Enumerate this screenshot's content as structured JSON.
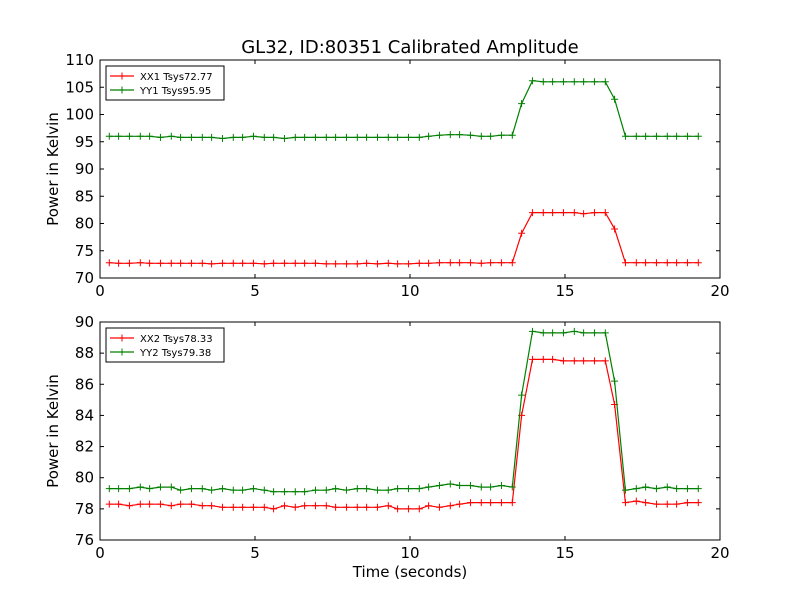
{
  "chart_data": [
    {
      "type": "line",
      "title": "GL32, ID:80351 Calibrated Amplitude",
      "xlabel": "",
      "ylabel": "Power in Kelvin",
      "xlim": [
        0,
        20
      ],
      "ylim": [
        70,
        110
      ],
      "xticks": [
        "0",
        "5",
        "10",
        "15",
        "20"
      ],
      "yticks": [
        "70",
        "75",
        "80",
        "85",
        "90",
        "95",
        "100",
        "105",
        "110"
      ],
      "grid": false,
      "legend": "top-left",
      "x": [
        0.3,
        0.6,
        0.95,
        1.3,
        1.6,
        1.95,
        2.3,
        2.6,
        2.95,
        3.3,
        3.6,
        3.95,
        4.3,
        4.6,
        4.95,
        5.3,
        5.6,
        5.95,
        6.3,
        6.6,
        6.95,
        7.3,
        7.6,
        7.95,
        8.3,
        8.6,
        8.95,
        9.3,
        9.6,
        9.95,
        10.3,
        10.6,
        10.95,
        11.3,
        11.6,
        11.95,
        12.3,
        12.6,
        12.95,
        13.3,
        13.6,
        13.95,
        14.3,
        14.6,
        14.95,
        15.3,
        15.6,
        15.95,
        16.3,
        16.6,
        16.95,
        17.3,
        17.6,
        17.95,
        18.3,
        18.6,
        18.95,
        19.3
      ],
      "series": [
        {
          "name": "XX1 Tsys72.77",
          "color": "#ff0000",
          "values": [
            72.8,
            72.7,
            72.7,
            72.8,
            72.7,
            72.7,
            72.7,
            72.7,
            72.7,
            72.7,
            72.6,
            72.7,
            72.7,
            72.7,
            72.7,
            72.6,
            72.7,
            72.7,
            72.7,
            72.7,
            72.7,
            72.6,
            72.6,
            72.6,
            72.6,
            72.7,
            72.6,
            72.7,
            72.6,
            72.6,
            72.7,
            72.7,
            72.8,
            72.8,
            72.8,
            72.8,
            72.7,
            72.8,
            72.8,
            72.8,
            78.2,
            82.0,
            82.0,
            82.0,
            82.0,
            82.0,
            81.8,
            82.0,
            82.0,
            79.0,
            72.8,
            72.8,
            72.8,
            72.8,
            72.8,
            72.8,
            72.8,
            72.8
          ]
        },
        {
          "name": "YY1 Tsys95.95",
          "color": "#008000",
          "values": [
            96.0,
            96.0,
            96.0,
            96.0,
            96.0,
            95.8,
            96.0,
            95.8,
            95.8,
            95.8,
            95.8,
            95.6,
            95.8,
            95.8,
            96.0,
            95.8,
            95.8,
            95.6,
            95.8,
            95.8,
            95.8,
            95.8,
            95.8,
            95.8,
            95.8,
            95.8,
            95.8,
            95.8,
            95.8,
            95.8,
            95.8,
            96.0,
            96.2,
            96.3,
            96.3,
            96.2,
            96.0,
            96.0,
            96.2,
            96.2,
            102.0,
            106.2,
            106.0,
            106.0,
            106.0,
            106.0,
            106.0,
            106.0,
            106.0,
            102.8,
            96.0,
            96.0,
            96.0,
            96.0,
            96.0,
            96.0,
            96.0,
            96.0
          ]
        }
      ]
    },
    {
      "type": "line",
      "title": "",
      "xlabel": "Time (seconds)",
      "ylabel": "Power in Kelvin",
      "xlim": [
        0,
        20
      ],
      "ylim": [
        76,
        90
      ],
      "xticks": [
        "0",
        "5",
        "10",
        "15",
        "20"
      ],
      "yticks": [
        "76",
        "78",
        "80",
        "82",
        "84",
        "86",
        "88",
        "90"
      ],
      "grid": false,
      "legend": "top-left",
      "x": [
        0.3,
        0.6,
        0.95,
        1.3,
        1.6,
        1.95,
        2.3,
        2.6,
        2.95,
        3.3,
        3.6,
        3.95,
        4.3,
        4.6,
        4.95,
        5.3,
        5.6,
        5.95,
        6.3,
        6.6,
        6.95,
        7.3,
        7.6,
        7.95,
        8.3,
        8.6,
        8.95,
        9.3,
        9.6,
        9.95,
        10.3,
        10.6,
        10.95,
        11.3,
        11.6,
        11.95,
        12.3,
        12.6,
        12.95,
        13.3,
        13.6,
        13.95,
        14.3,
        14.6,
        14.95,
        15.3,
        15.6,
        15.95,
        16.3,
        16.6,
        16.95,
        17.3,
        17.6,
        17.95,
        18.3,
        18.6,
        18.95,
        19.3
      ],
      "series": [
        {
          "name": "XX2 Tsys78.33",
          "color": "#ff0000",
          "values": [
            78.3,
            78.3,
            78.2,
            78.3,
            78.3,
            78.3,
            78.2,
            78.3,
            78.3,
            78.2,
            78.2,
            78.1,
            78.1,
            78.1,
            78.1,
            78.1,
            78.0,
            78.2,
            78.1,
            78.2,
            78.2,
            78.2,
            78.1,
            78.1,
            78.1,
            78.1,
            78.1,
            78.2,
            78.0,
            78.0,
            78.0,
            78.2,
            78.1,
            78.2,
            78.3,
            78.4,
            78.4,
            78.4,
            78.4,
            78.4,
            84.0,
            87.6,
            87.6,
            87.6,
            87.5,
            87.5,
            87.5,
            87.5,
            87.5,
            84.7,
            78.4,
            78.5,
            78.4,
            78.3,
            78.3,
            78.3,
            78.4,
            78.4
          ]
        },
        {
          "name": "YY2 Tsys79.38",
          "color": "#008000",
          "values": [
            79.3,
            79.3,
            79.3,
            79.4,
            79.3,
            79.4,
            79.4,
            79.2,
            79.3,
            79.3,
            79.2,
            79.3,
            79.2,
            79.2,
            79.3,
            79.2,
            79.1,
            79.1,
            79.1,
            79.1,
            79.2,
            79.2,
            79.3,
            79.2,
            79.3,
            79.3,
            79.2,
            79.2,
            79.3,
            79.3,
            79.3,
            79.4,
            79.5,
            79.6,
            79.5,
            79.5,
            79.4,
            79.4,
            79.5,
            79.4,
            85.3,
            89.4,
            89.3,
            89.3,
            89.3,
            89.4,
            89.3,
            89.3,
            89.3,
            86.2,
            79.2,
            79.3,
            79.4,
            79.3,
            79.4,
            79.3,
            79.3,
            79.3
          ]
        }
      ]
    }
  ]
}
